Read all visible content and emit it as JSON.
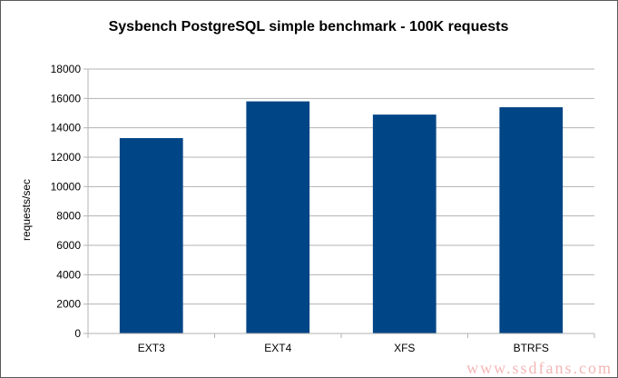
{
  "chart_data": {
    "type": "bar",
    "title": "Sysbench PostgreSQL simple benchmark - 100K requests",
    "xlabel": "",
    "ylabel": "requests/sec",
    "categories": [
      "EXT3",
      "EXT4",
      "XFS",
      "BTRFS"
    ],
    "values": [
      13300,
      15800,
      14900,
      15400
    ],
    "ylim": [
      0,
      18000
    ],
    "yticks": [
      0,
      2000,
      4000,
      6000,
      8000,
      10000,
      12000,
      14000,
      16000,
      18000
    ],
    "grid": true,
    "legend": "none",
    "bar_color": "#004586",
    "grid_color": "#b3b3b3"
  },
  "watermark": "www.ssdfans.com"
}
